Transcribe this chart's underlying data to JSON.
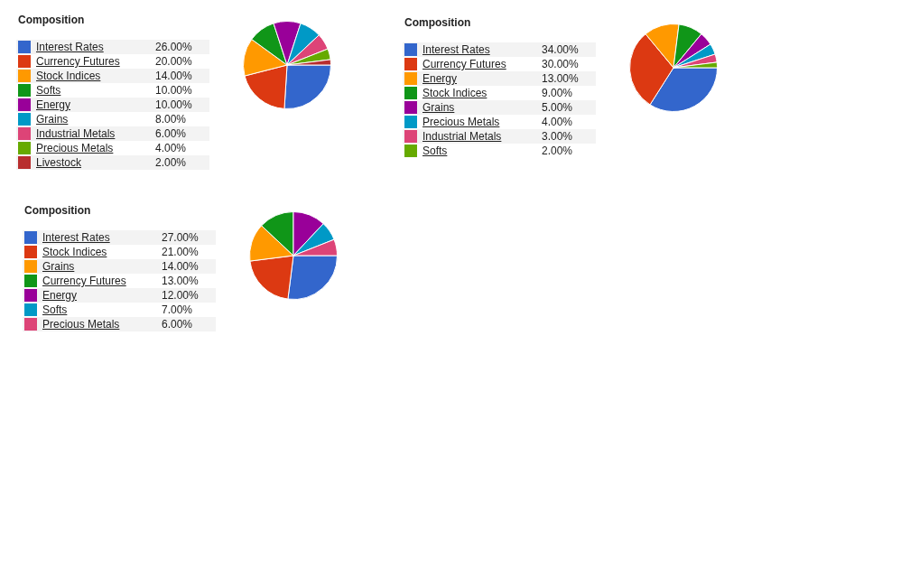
{
  "chart_data": [
    {
      "type": "pie",
      "title": "Composition",
      "legend": "left",
      "categories": [
        "Interest Rates",
        "Currency Futures",
        "Stock Indices",
        "Softs",
        "Energy",
        "Grains",
        "Industrial Metals",
        "Precious Metals",
        "Livestock"
      ],
      "values": [
        26,
        20,
        14,
        10,
        10,
        8,
        6,
        4,
        2
      ],
      "value_labels": [
        "26.00%",
        "20.00%",
        "14.00%",
        "10.00%",
        "10.00%",
        "8.00%",
        "6.00%",
        "4.00%",
        "2.00%"
      ],
      "colors": [
        "#3366cc",
        "#dc3912",
        "#ff9900",
        "#109618",
        "#990099",
        "#0099c6",
        "#dd4477",
        "#66aa00",
        "#b82e2e"
      ]
    },
    {
      "type": "pie",
      "title": "Composition",
      "legend": "left",
      "categories": [
        "Interest Rates",
        "Currency Futures",
        "Energy",
        "Stock Indices",
        "Grains",
        "Precious Metals",
        "Industrial Metals",
        "Softs"
      ],
      "values": [
        34,
        30,
        13,
        9,
        5,
        4,
        3,
        2
      ],
      "value_labels": [
        "34.00%",
        "30.00%",
        "13.00%",
        "9.00%",
        "5.00%",
        "4.00%",
        "3.00%",
        "2.00%"
      ],
      "colors": [
        "#3366cc",
        "#dc3912",
        "#ff9900",
        "#109618",
        "#990099",
        "#0099c6",
        "#dd4477",
        "#66aa00"
      ]
    },
    {
      "type": "pie",
      "title": "Composition",
      "legend": "left",
      "categories": [
        "Interest Rates",
        "Stock Indices",
        "Grains",
        "Currency Futures",
        "Energy",
        "Softs",
        "Precious Metals"
      ],
      "values": [
        27,
        21,
        14,
        13,
        12,
        7,
        6
      ],
      "value_labels": [
        "27.00%",
        "21.00%",
        "14.00%",
        "13.00%",
        "12.00%",
        "7.00%",
        "6.00%"
      ],
      "colors": [
        "#3366cc",
        "#dc3912",
        "#ff9900",
        "#109618",
        "#990099",
        "#0099c6",
        "#dd4477"
      ]
    }
  ]
}
